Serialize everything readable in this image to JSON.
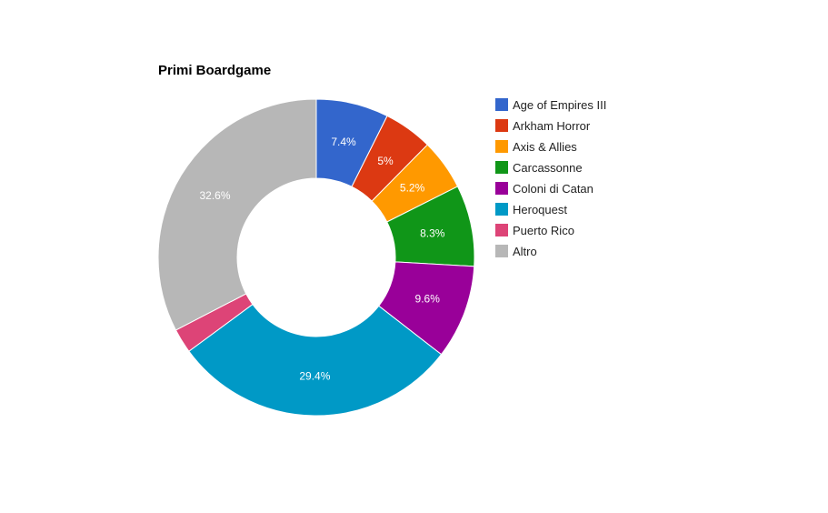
{
  "chart_data": {
    "type": "pie",
    "donut": true,
    "title": "Primi Boardgame",
    "legend_position": "right",
    "slices": [
      {
        "label": "Age of Empires III",
        "value": 7.4,
        "display": "7.4%",
        "color": "#3366cc"
      },
      {
        "label": "Arkham Horror",
        "value": 5.0,
        "display": "5%",
        "color": "#dc3912"
      },
      {
        "label": "Axis & Allies",
        "value": 5.2,
        "display": "5.2%",
        "color": "#ff9900"
      },
      {
        "label": "Carcassonne",
        "value": 8.3,
        "display": "8.3%",
        "color": "#109618"
      },
      {
        "label": "Coloni di Catan",
        "value": 9.6,
        "display": "9.6%",
        "color": "#990099"
      },
      {
        "label": "Heroquest",
        "value": 29.4,
        "display": "29.4%",
        "color": "#0099c6"
      },
      {
        "label": "Puerto Rico",
        "value": 2.5,
        "display": "",
        "color": "#dd4477"
      },
      {
        "label": "Altro",
        "value": 32.6,
        "display": "32.6%",
        "color": "#b7b7b7"
      }
    ]
  }
}
